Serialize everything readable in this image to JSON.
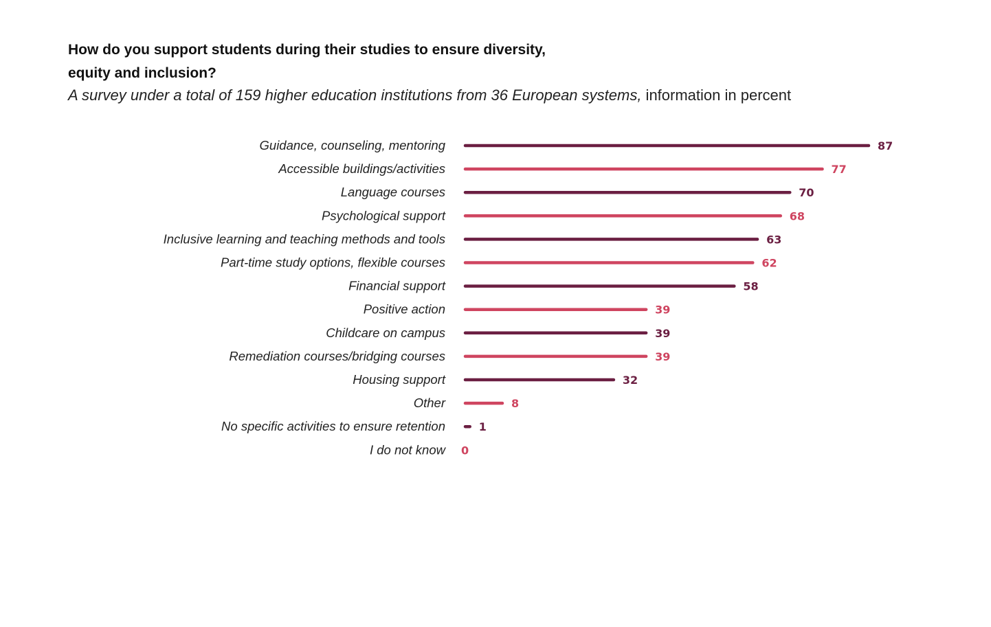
{
  "chart_data": {
    "type": "bar",
    "orientation": "horizontal",
    "title": "How do you support students during their studies to ensure diversity, equity and inclusion?",
    "subtitle_italic": "A survey under a total of 159 higher education institutions from 36 European systems,",
    "subtitle_plain": " information in percent",
    "xlabel": "",
    "ylabel": "",
    "xlim": [
      0,
      100
    ],
    "grid": false,
    "categories": [
      "Guidance, counseling, mentoring",
      "Accessible buildings/activities",
      "Language courses",
      "Psychological support",
      "Inclusive learning and teaching methods and tools",
      "Part-time study options, flexible courses",
      "Financial support",
      "Positive action",
      "Childcare on campus",
      "Remediation courses/bridging courses",
      "Housing support",
      "Other",
      "No specific activities to ensure retention",
      "I do not know"
    ],
    "values": [
      87,
      77,
      70,
      68,
      63,
      62,
      58,
      39,
      39,
      39,
      32,
      8,
      1,
      0
    ],
    "colors": [
      "#6b1f42",
      "#cf4560"
    ]
  }
}
